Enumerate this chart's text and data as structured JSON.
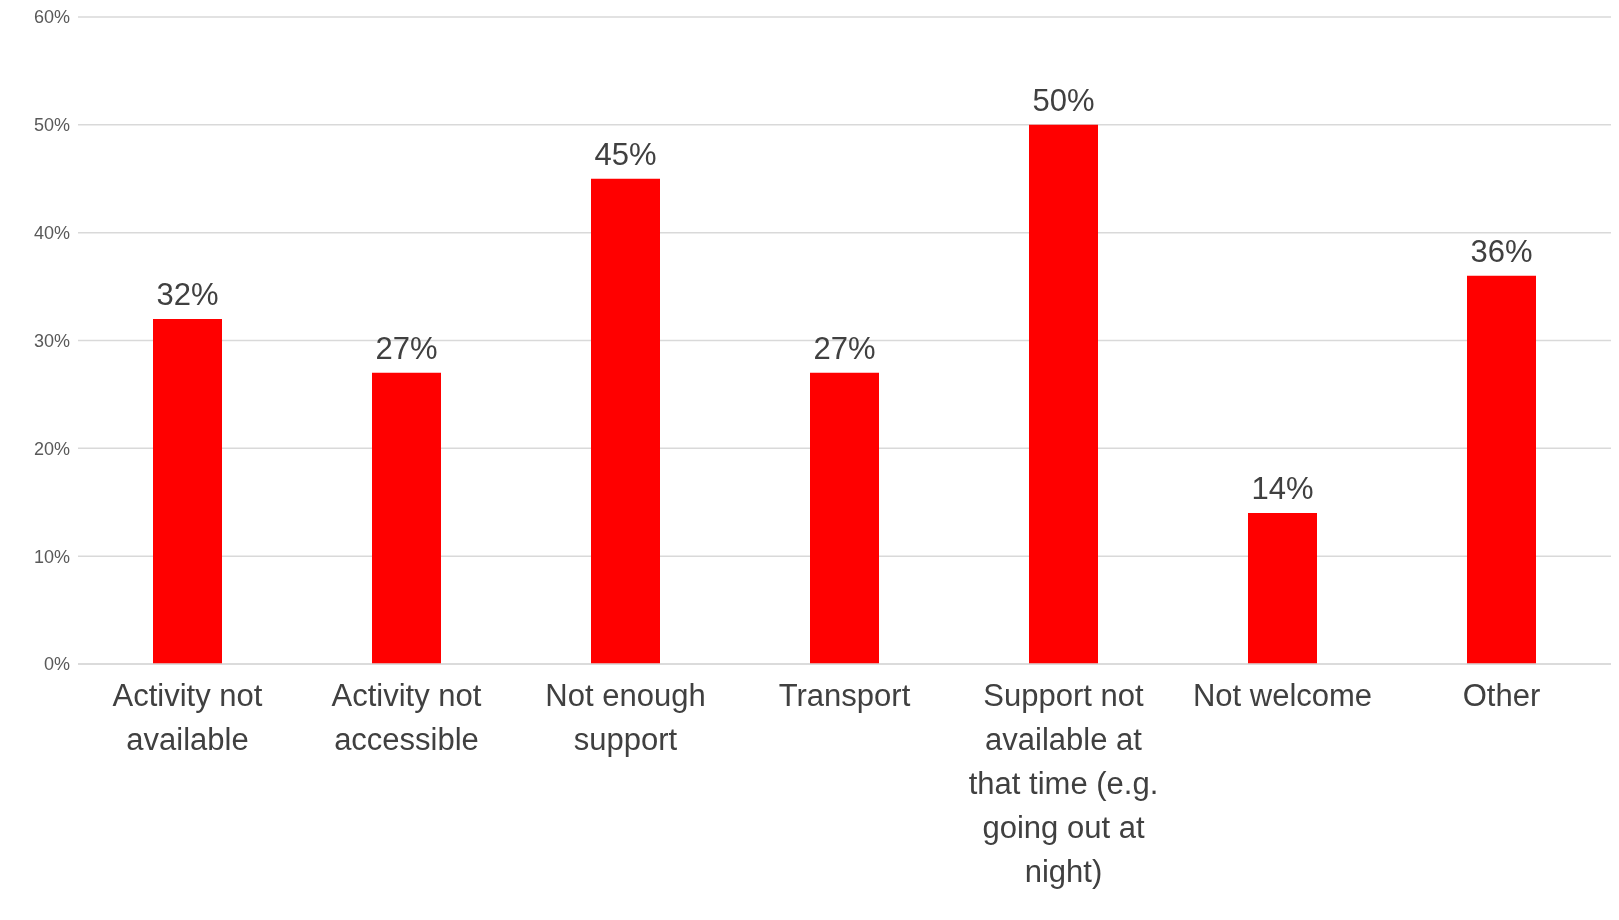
{
  "chart_data": {
    "type": "bar",
    "categories": [
      "Activity not available",
      "Activity not accessible",
      "Not enough support",
      "Transport",
      "Support not available at that time (e.g. going out at night)",
      "Not welcome",
      "Other"
    ],
    "values": [
      32,
      27,
      45,
      27,
      50,
      14,
      36
    ],
    "value_labels": [
      "32%",
      "27%",
      "45%",
      "27%",
      "50%",
      "14%",
      "36%"
    ],
    "color": "#ff0000",
    "ylim": [
      0,
      60
    ],
    "yticks": [
      {
        "value": 0,
        "label": "0%"
      },
      {
        "value": 10,
        "label": "10%"
      },
      {
        "value": 20,
        "label": "20%"
      },
      {
        "value": 30,
        "label": "30%"
      },
      {
        "value": 40,
        "label": "40%"
      },
      {
        "value": 50,
        "label": "50%"
      },
      {
        "value": 60,
        "label": "60%"
      }
    ],
    "grid": "y"
  }
}
